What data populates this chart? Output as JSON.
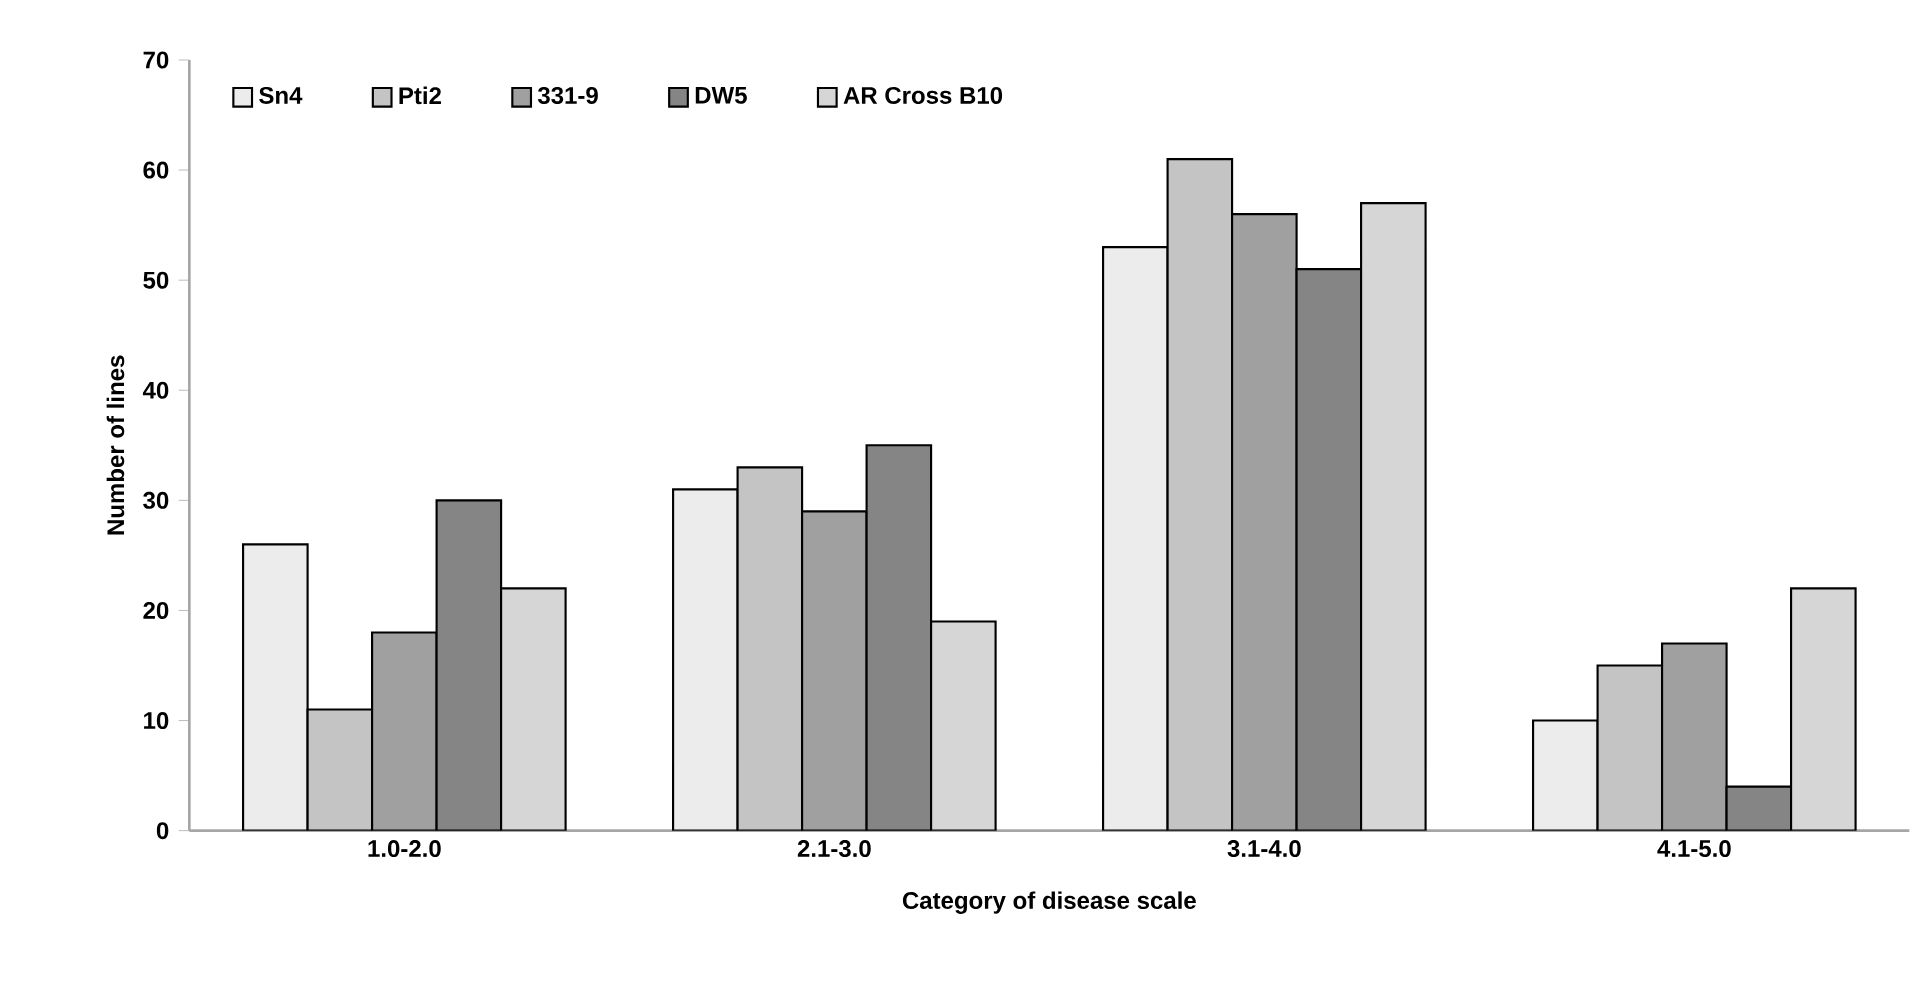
{
  "chart_data": {
    "type": "bar",
    "xlabel": "Category of disease scale",
    "ylabel": "Number of lines",
    "categories": [
      "1.0-2.0",
      "2.1-3.0",
      "3.1-4.0",
      "4.1-5.0"
    ],
    "series": [
      {
        "name": "Sn4",
        "color": "#ececec",
        "values": [
          26,
          31,
          53,
          10
        ]
      },
      {
        "name": "Pti2",
        "color": "#c4c4c4",
        "values": [
          11,
          33,
          61,
          15
        ]
      },
      {
        "name": "331-9",
        "color": "#a0a0a0",
        "values": [
          18,
          29,
          56,
          17
        ]
      },
      {
        "name": "DW5",
        "color": "#858585",
        "values": [
          30,
          35,
          51,
          4
        ]
      },
      {
        "name": "AR Cross B10",
        "color": "#d6d6d6",
        "values": [
          22,
          19,
          57,
          22
        ]
      }
    ],
    "ylim": [
      0,
      70
    ],
    "yticks": [
      0,
      10,
      20,
      30,
      40,
      50,
      60,
      70
    ],
    "grid": false,
    "legend": "top left"
  }
}
